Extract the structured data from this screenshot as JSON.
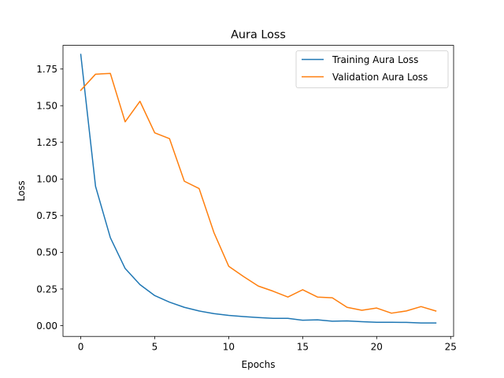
{
  "chart_data": {
    "type": "line",
    "title": "Aura Loss",
    "xlabel": "Epochs",
    "ylabel": "Loss",
    "xlim": [
      -1.2,
      25.2
    ],
    "ylim": [
      -0.0735,
      1.9115
    ],
    "xticks": [
      0,
      5,
      10,
      15,
      20,
      25
    ],
    "xtick_labels": [
      "0",
      "5",
      "10",
      "15",
      "20",
      "25"
    ],
    "yticks": [
      0.0,
      0.25,
      0.5,
      0.75,
      1.0,
      1.25,
      1.5,
      1.75
    ],
    "ytick_labels": [
      "0.00",
      "0.25",
      "0.50",
      "0.75",
      "1.00",
      "1.25",
      "1.50",
      "1.75"
    ],
    "grid": false,
    "legend_position": "top-right",
    "x": [
      0,
      1,
      2,
      3,
      4,
      5,
      6,
      7,
      8,
      9,
      10,
      11,
      12,
      13,
      14,
      15,
      16,
      17,
      18,
      19,
      20,
      21,
      22,
      23,
      24
    ],
    "series": [
      {
        "name": "Training Aura Loss",
        "color": "#1f77b4",
        "values": [
          1.85,
          0.95,
          0.6,
          0.39,
          0.28,
          0.205,
          0.16,
          0.125,
          0.1,
          0.082,
          0.07,
          0.062,
          0.055,
          0.05,
          0.05,
          0.037,
          0.04,
          0.03,
          0.032,
          0.027,
          0.023,
          0.023,
          0.022,
          0.018,
          0.018
        ]
      },
      {
        "name": "Validation Aura Loss",
        "color": "#ff7f0e",
        "values": [
          1.605,
          1.715,
          1.72,
          1.39,
          1.53,
          1.315,
          1.275,
          0.985,
          0.935,
          0.635,
          0.405,
          0.335,
          0.27,
          0.235,
          0.195,
          0.245,
          0.195,
          0.19,
          0.125,
          0.105,
          0.12,
          0.085,
          0.1,
          0.13,
          0.1
        ]
      }
    ]
  }
}
